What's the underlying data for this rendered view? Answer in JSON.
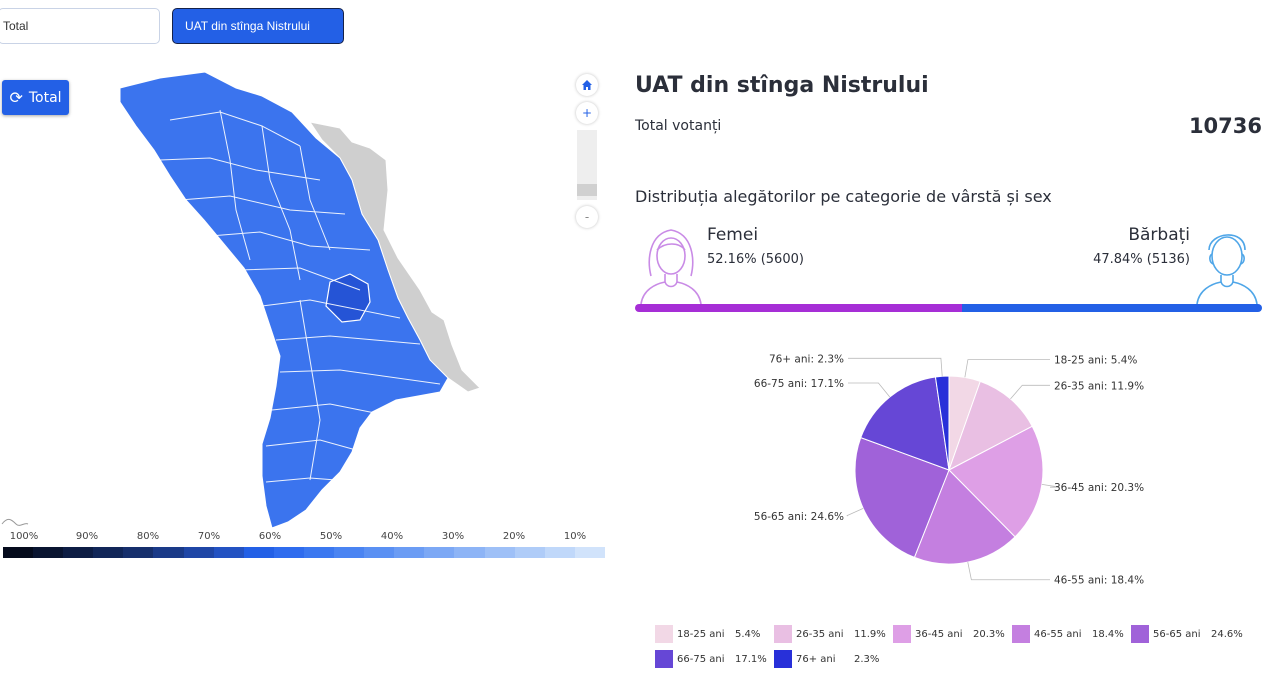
{
  "tabs": [
    {
      "label": "Total",
      "active": false
    },
    {
      "label": "UAT din stînga Nistrului",
      "active": true
    }
  ],
  "map": {
    "reset_button_label": "Total",
    "scale_labels": [
      "100%",
      "90%",
      "80%",
      "70%",
      "60%",
      "50%",
      "40%",
      "30%",
      "20%",
      "10%"
    ],
    "scale_colors": [
      "#050b1c",
      "#091430",
      "#0d1d44",
      "#112658",
      "#162f6c",
      "#1a3a88",
      "#1f46a6",
      "#2352c2",
      "#2360e6",
      "#2f6cee",
      "#3b78f0",
      "#4a84f2",
      "#5a90f3",
      "#6b9cf4",
      "#7ca8f5",
      "#8db4f6",
      "#9ec0f7",
      "#afccf8",
      "#c0d8fa",
      "#d1e3fb"
    ],
    "zoom_in_label": "+",
    "zoom_out_label": "-",
    "colors": {
      "fill": "#3b74ee",
      "unavailable": "#cfcfcf",
      "highlight": "#2554d6"
    }
  },
  "panel": {
    "title": "UAT din stînga Nistrului",
    "total_voters_label": "Total votanți",
    "total_voters_value": "10736",
    "distribution_title": "Distribuția alegătorilor pe categorie de vârstă și sex",
    "female": {
      "label": "Femei",
      "value": "52.16% (5600)",
      "percent": 52.16,
      "color": "#a62ed6"
    },
    "male": {
      "label": "Bărbați",
      "value": "47.84% (5136)",
      "percent": 47.84,
      "color": "#2360e6"
    }
  },
  "chart_data": {
    "type": "pie",
    "categories": [
      "18-25 ani",
      "26-35 ani",
      "36-45 ani",
      "46-55 ani",
      "56-65 ani",
      "66-75 ani",
      "76+ ani"
    ],
    "values": [
      5.4,
      11.9,
      20.3,
      18.4,
      24.6,
      17.1,
      2.3
    ],
    "labels": [
      "18-25 ani: 5.4%",
      "26-35 ani: 11.9%",
      "36-45 ani: 20.3%",
      "46-55 ani: 18.4%",
      "56-65 ani: 24.6%",
      "66-75 ani: 17.1%",
      "76+ ani: 2.3%"
    ],
    "legend_values": [
      "5.4%",
      "11.9%",
      "20.3%",
      "18.4%",
      "24.6%",
      "17.1%",
      "2.3%"
    ],
    "colors": [
      "#f2d8e6",
      "#e9bfe3",
      "#de9fe6",
      "#c47fe0",
      "#a062d9",
      "#6647d6",
      "#2830d9"
    ],
    "legend_position": "bottom"
  }
}
